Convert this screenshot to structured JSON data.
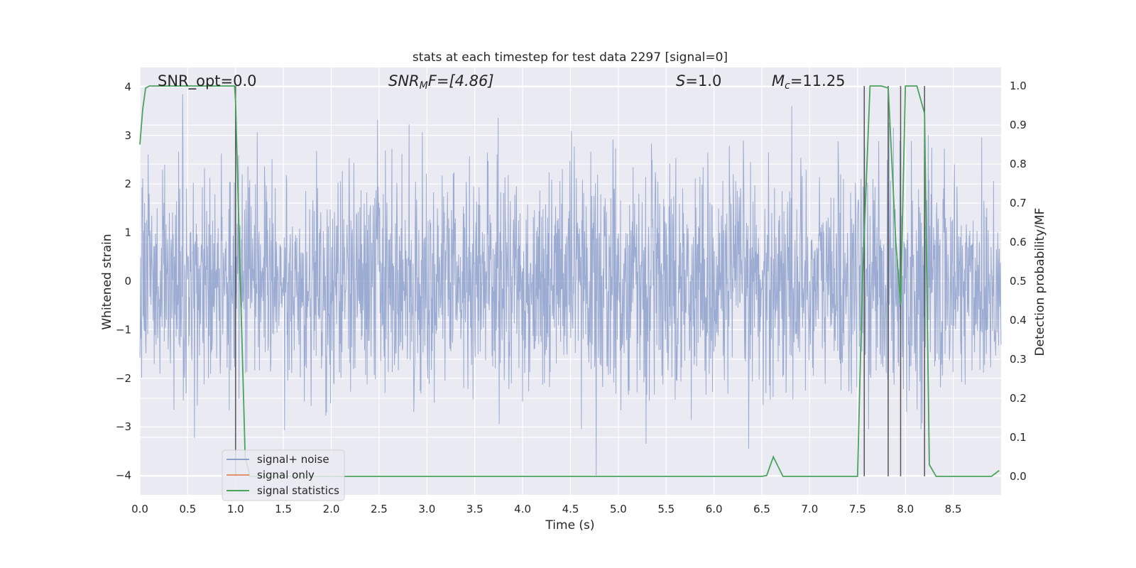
{
  "chart_data": {
    "type": "line",
    "title": "stats at each timestep for test data 2297 [signal=0]",
    "xlabel": "Time (s)",
    "ylabel": "Whitened strain",
    "y2label": "Detection probability/MF",
    "xlim": [
      0,
      9
    ],
    "ylim": [
      -4.4,
      4.4
    ],
    "y2lim": [
      -0.0475,
      1.0475
    ],
    "xticks": [
      "0.0",
      "0.5",
      "1.0",
      "1.5",
      "2.0",
      "2.5",
      "3.0",
      "3.5",
      "4.0",
      "4.5",
      "5.0",
      "5.5",
      "6.0",
      "6.5",
      "7.0",
      "7.5",
      "8.0",
      "8.5"
    ],
    "yticks": [
      "4",
      "3",
      "2",
      "1",
      "0",
      "−1",
      "−2",
      "−3",
      "−4"
    ],
    "y2ticks": [
      "1.0",
      "0.9",
      "0.8",
      "0.7",
      "0.6",
      "0.5",
      "0.4",
      "0.3",
      "0.2",
      "0.1",
      "0.0"
    ],
    "grid": true,
    "legend": {
      "position": "lower-left",
      "entries": [
        {
          "label": "signal+ noise",
          "color": "#8da0cb"
        },
        {
          "label": "signal only",
          "color": "#e5916e"
        },
        {
          "label": "signal statistics",
          "color": "#4aa35a"
        }
      ]
    },
    "annotations": {
      "snr_opt": "SNR_opt=0.0",
      "snr_mf_main": "SNR",
      "snr_mf_sub": "M",
      "snr_mf_rest": "F=[4.86]",
      "s_main": "S",
      "s_rest": "=1.0",
      "mc_main": "M",
      "mc_sub": "c",
      "mc_rest": "=11.25"
    },
    "series": [
      {
        "name": "signal+ noise",
        "color": "#8da0cb",
        "description_range": [
          -4.0,
          4.0
        ]
      },
      {
        "name": "signal statistics",
        "color": "#4aa35a",
        "x": [
          0.0,
          0.03,
          0.06,
          0.1,
          0.2,
          0.4,
          0.6,
          0.8,
          0.95,
          0.99,
          1.0,
          1.05,
          1.1,
          1.15,
          1.3,
          2.0,
          3.0,
          4.0,
          5.0,
          6.0,
          6.5,
          6.55,
          6.62,
          6.72,
          6.8,
          7.0,
          7.2,
          7.5,
          7.55,
          7.63,
          7.75,
          7.82,
          7.9,
          7.95,
          8.0,
          8.05,
          8.12,
          8.2,
          8.25,
          8.32,
          8.5,
          8.7,
          8.9,
          8.98
        ],
        "y": [
          0.85,
          0.94,
          0.995,
          1.0,
          1.0,
          1.0,
          1.0,
          1.0,
          1.0,
          1.0,
          0.96,
          0.5,
          0.05,
          0.0,
          0.0,
          0.0,
          0.0,
          0.0,
          0.0,
          0.0,
          0.0,
          0.002,
          0.05,
          0.0,
          0.0,
          0.0,
          0.0,
          0.0,
          0.5,
          1.0,
          1.0,
          0.995,
          0.6,
          0.44,
          1.0,
          1.0,
          1.0,
          0.93,
          0.03,
          0.0,
          0.0,
          0.0,
          0.0,
          0.015
        ]
      }
    ],
    "vertical_markers": [
      1.0,
      7.57,
      7.82,
      7.95,
      8.2
    ]
  }
}
